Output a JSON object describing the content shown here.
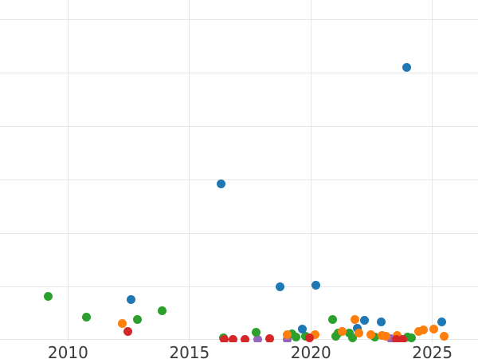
{
  "chart_data": {
    "type": "scatter",
    "title": "",
    "xlabel": "",
    "ylabel": "",
    "grid": true,
    "legend_position": "none",
    "xlim": [
      2007.2,
      2026.88
    ],
    "ylim": [
      -0.06,
      6.37
    ],
    "x_ticks": [
      {
        "value": 2010,
        "label": "2010"
      },
      {
        "value": 2015,
        "label": "2015"
      },
      {
        "value": 2020,
        "label": "2020"
      },
      {
        "value": 2025,
        "label": "2025"
      }
    ],
    "y_gridline_values": [
      0,
      1,
      2,
      3,
      4,
      5,
      6
    ],
    "marker_diameter_px": 11,
    "series": [
      {
        "name": "purple",
        "color": "#9467bd",
        "points": [
          [
            2017.81,
            0.01
          ],
          [
            2019.04,
            0.01
          ],
          [
            2023.29,
            0.02
          ]
        ]
      },
      {
        "name": "green",
        "color": "#2ca02c",
        "points": [
          [
            2009.19,
            0.82
          ],
          [
            2010.77,
            0.43
          ],
          [
            2012.87,
            0.38
          ],
          [
            2013.88,
            0.54
          ],
          [
            2016.41,
            0.04
          ],
          [
            2017.75,
            0.14
          ],
          [
            2019.22,
            0.11
          ],
          [
            2019.4,
            0.05
          ],
          [
            2019.78,
            0.07
          ],
          [
            2020.91,
            0.38
          ],
          [
            2021.04,
            0.06
          ],
          [
            2021.12,
            0.12
          ],
          [
            2021.58,
            0.12
          ],
          [
            2021.7,
            0.04
          ],
          [
            2022.63,
            0.05
          ],
          [
            2023.97,
            0.05
          ],
          [
            2024.15,
            0.03
          ]
        ]
      },
      {
        "name": "blue",
        "color": "#1f77b4",
        "points": [
          [
            2012.61,
            0.75
          ],
          [
            2016.3,
            2.92
          ],
          [
            2018.74,
            1.0
          ],
          [
            2019.66,
            0.2
          ],
          [
            2020.21,
            1.03
          ],
          [
            2021.9,
            0.22
          ],
          [
            2022.21,
            0.37
          ],
          [
            2022.89,
            0.34
          ],
          [
            2023.93,
            5.11
          ],
          [
            2025.38,
            0.34
          ]
        ]
      },
      {
        "name": "orange",
        "color": "#ff7f0e",
        "points": [
          [
            2012.23,
            0.31
          ],
          [
            2019.01,
            0.1
          ],
          [
            2020.17,
            0.1
          ],
          [
            2021.29,
            0.16
          ],
          [
            2021.82,
            0.38
          ],
          [
            2021.97,
            0.13
          ],
          [
            2022.48,
            0.09
          ],
          [
            2022.93,
            0.08
          ],
          [
            2023.1,
            0.06
          ],
          [
            2023.55,
            0.08
          ],
          [
            2024.45,
            0.16
          ],
          [
            2024.64,
            0.19
          ],
          [
            2025.07,
            0.2
          ],
          [
            2025.47,
            0.07
          ]
        ]
      },
      {
        "name": "red",
        "color": "#d62728",
        "points": [
          [
            2012.48,
            0.15
          ],
          [
            2016.43,
            0.01
          ],
          [
            2016.79,
            0.01
          ],
          [
            2017.29,
            0.01
          ],
          [
            2018.3,
            0.02
          ],
          [
            2019.94,
            0.04
          ],
          [
            2023.51,
            0.01
          ],
          [
            2023.77,
            0.01
          ]
        ]
      }
    ],
    "style": {
      "background_color": "#ffffff",
      "gridline_color": "#e7e7e7",
      "tick_label_color": "#3a3a3a"
    }
  }
}
